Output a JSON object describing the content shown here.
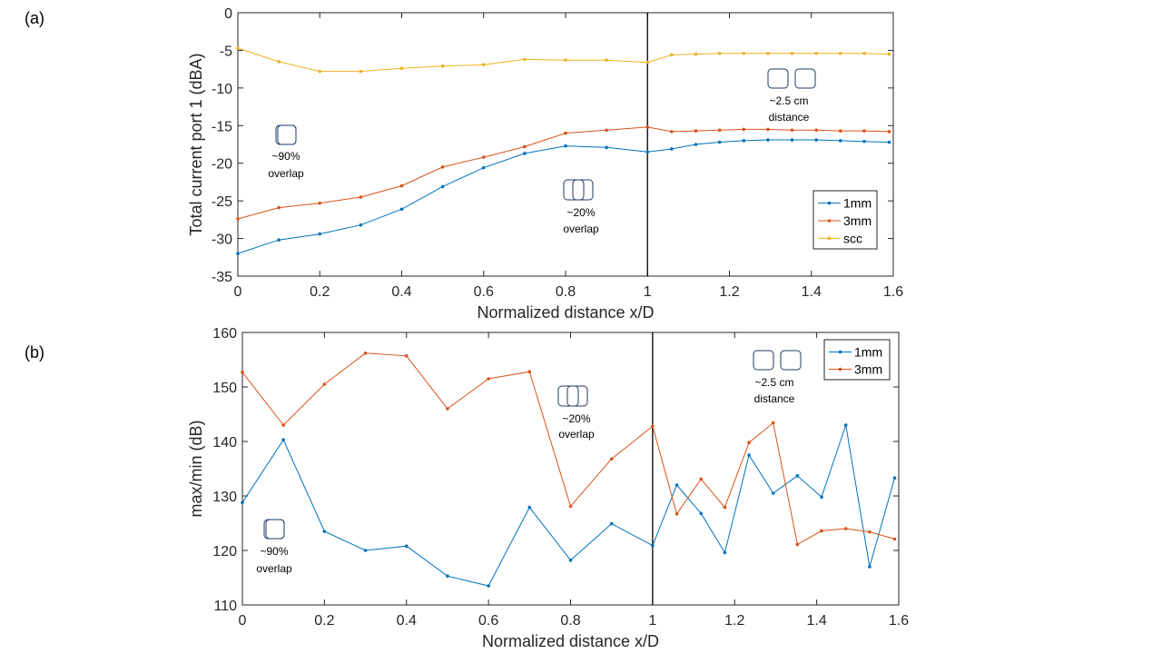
{
  "figure": {
    "panel_a_label": "(a)",
    "panel_b_label": "(b)"
  },
  "colors": {
    "series_1mm": "#0072BD",
    "series_3mm": "#D95319",
    "series_scc": "#EDB120",
    "axis": "#262626",
    "divider": "#000000"
  },
  "chart_data": [
    {
      "type": "line",
      "panel": "(a)",
      "title": "",
      "xlabel": "Normalized distance x/D",
      "ylabel": "Total current port 1 (dBA)",
      "xlim": [
        0,
        1.6
      ],
      "ylim": [
        -35,
        0
      ],
      "xticks": [
        0,
        0.2,
        0.4,
        0.6,
        0.8,
        1,
        1.2,
        1.4,
        1.6
      ],
      "xtick_labels": [
        "0",
        "0.2",
        "0.4",
        "0.6",
        "0.8",
        "1",
        "1.2",
        "1.4",
        "1.6"
      ],
      "yticks": [
        -35,
        -30,
        -25,
        -20,
        -15,
        -10,
        -5,
        0
      ],
      "ytick_labels": [
        "-35",
        "-30",
        "-25",
        "-20",
        "-15",
        "-10",
        "-5",
        "0"
      ],
      "vline_x": 1,
      "grid": false,
      "legend_position": "bottom-right",
      "x": [
        0,
        0.1,
        0.2,
        0.3,
        0.4,
        0.5,
        0.6,
        0.7,
        0.8,
        0.9,
        1.0,
        1.059,
        1.118,
        1.176,
        1.235,
        1.294,
        1.353,
        1.412,
        1.471,
        1.529,
        1.59
      ],
      "series": [
        {
          "name": "1mm",
          "values": [
            -32.0,
            -30.2,
            -29.4,
            -28.2,
            -26.1,
            -23.1,
            -20.6,
            -18.7,
            -17.7,
            -17.9,
            -18.5,
            -18.1,
            -17.5,
            -17.2,
            -17.0,
            -16.9,
            -16.9,
            -16.9,
            -17.0,
            -17.1,
            -17.2
          ]
        },
        {
          "name": "3mm",
          "values": [
            -27.4,
            -25.9,
            -25.3,
            -24.5,
            -23.0,
            -20.5,
            -19.2,
            -17.8,
            -16.0,
            -15.6,
            -15.2,
            -15.8,
            -15.7,
            -15.6,
            -15.5,
            -15.5,
            -15.6,
            -15.6,
            -15.7,
            -15.7,
            -15.8
          ]
        },
        {
          "name": "scc",
          "values": [
            -4.7,
            -6.5,
            -7.8,
            -7.8,
            -7.4,
            -7.1,
            -6.9,
            -6.2,
            -6.3,
            -6.3,
            -6.6,
            -5.6,
            -5.5,
            -5.4,
            -5.4,
            -5.4,
            -5.4,
            -5.4,
            -5.4,
            -5.4,
            -5.5
          ]
        }
      ],
      "annotations": [
        {
          "id": "overlap90",
          "line1": "~90%",
          "line2": "overlap",
          "icon": "overlap-90-icon"
        },
        {
          "id": "overlap20",
          "line1": "~20%",
          "line2": "overlap",
          "icon": "overlap-20-icon"
        },
        {
          "id": "distance",
          "line1": "~2.5 cm",
          "line2": "distance",
          "icon": "separated-coils-icon"
        }
      ]
    },
    {
      "type": "line",
      "panel": "(b)",
      "title": "",
      "xlabel": "Normalized distance x/D",
      "ylabel": "max/min (dB)",
      "xlim": [
        0,
        1.6
      ],
      "ylim": [
        110,
        160
      ],
      "xticks": [
        0,
        0.2,
        0.4,
        0.6,
        0.8,
        1,
        1.2,
        1.4,
        1.6
      ],
      "xtick_labels": [
        "0",
        "0.2",
        "0.4",
        "0.6",
        "0.8",
        "1",
        "1.2",
        "1.4",
        "1.6"
      ],
      "yticks": [
        110,
        120,
        130,
        140,
        150,
        160
      ],
      "ytick_labels": [
        "110",
        "120",
        "130",
        "140",
        "150",
        "160"
      ],
      "vline_x": 1,
      "grid": false,
      "legend_position": "top-right",
      "x": [
        0,
        0.1,
        0.2,
        0.3,
        0.4,
        0.5,
        0.6,
        0.7,
        0.8,
        0.9,
        1.0,
        1.059,
        1.118,
        1.176,
        1.235,
        1.294,
        1.353,
        1.412,
        1.471,
        1.529,
        1.59
      ],
      "series": [
        {
          "name": "1mm",
          "values": [
            128.8,
            140.3,
            123.5,
            120.0,
            120.8,
            115.3,
            113.5,
            127.9,
            118.2,
            124.9,
            120.9,
            132.0,
            126.8,
            119.6,
            137.5,
            130.5,
            133.7,
            129.8,
            143.0,
            117.0,
            133.3
          ]
        },
        {
          "name": "3mm",
          "values": [
            152.7,
            143.0,
            150.5,
            156.2,
            155.7,
            146.0,
            151.5,
            152.8,
            128.1,
            136.8,
            142.8,
            126.7,
            133.1,
            127.9,
            139.8,
            143.4,
            121.1,
            123.6,
            124.0,
            123.4,
            122.1
          ]
        }
      ],
      "annotations": [
        {
          "id": "overlap90",
          "line1": "~90%",
          "line2": "overlap",
          "icon": "overlap-90-icon"
        },
        {
          "id": "overlap20",
          "line1": "~20%",
          "line2": "overlap",
          "icon": "overlap-20-icon"
        },
        {
          "id": "distance",
          "line1": "~2.5 cm",
          "line2": "distance",
          "icon": "separated-coils-icon"
        }
      ]
    }
  ]
}
